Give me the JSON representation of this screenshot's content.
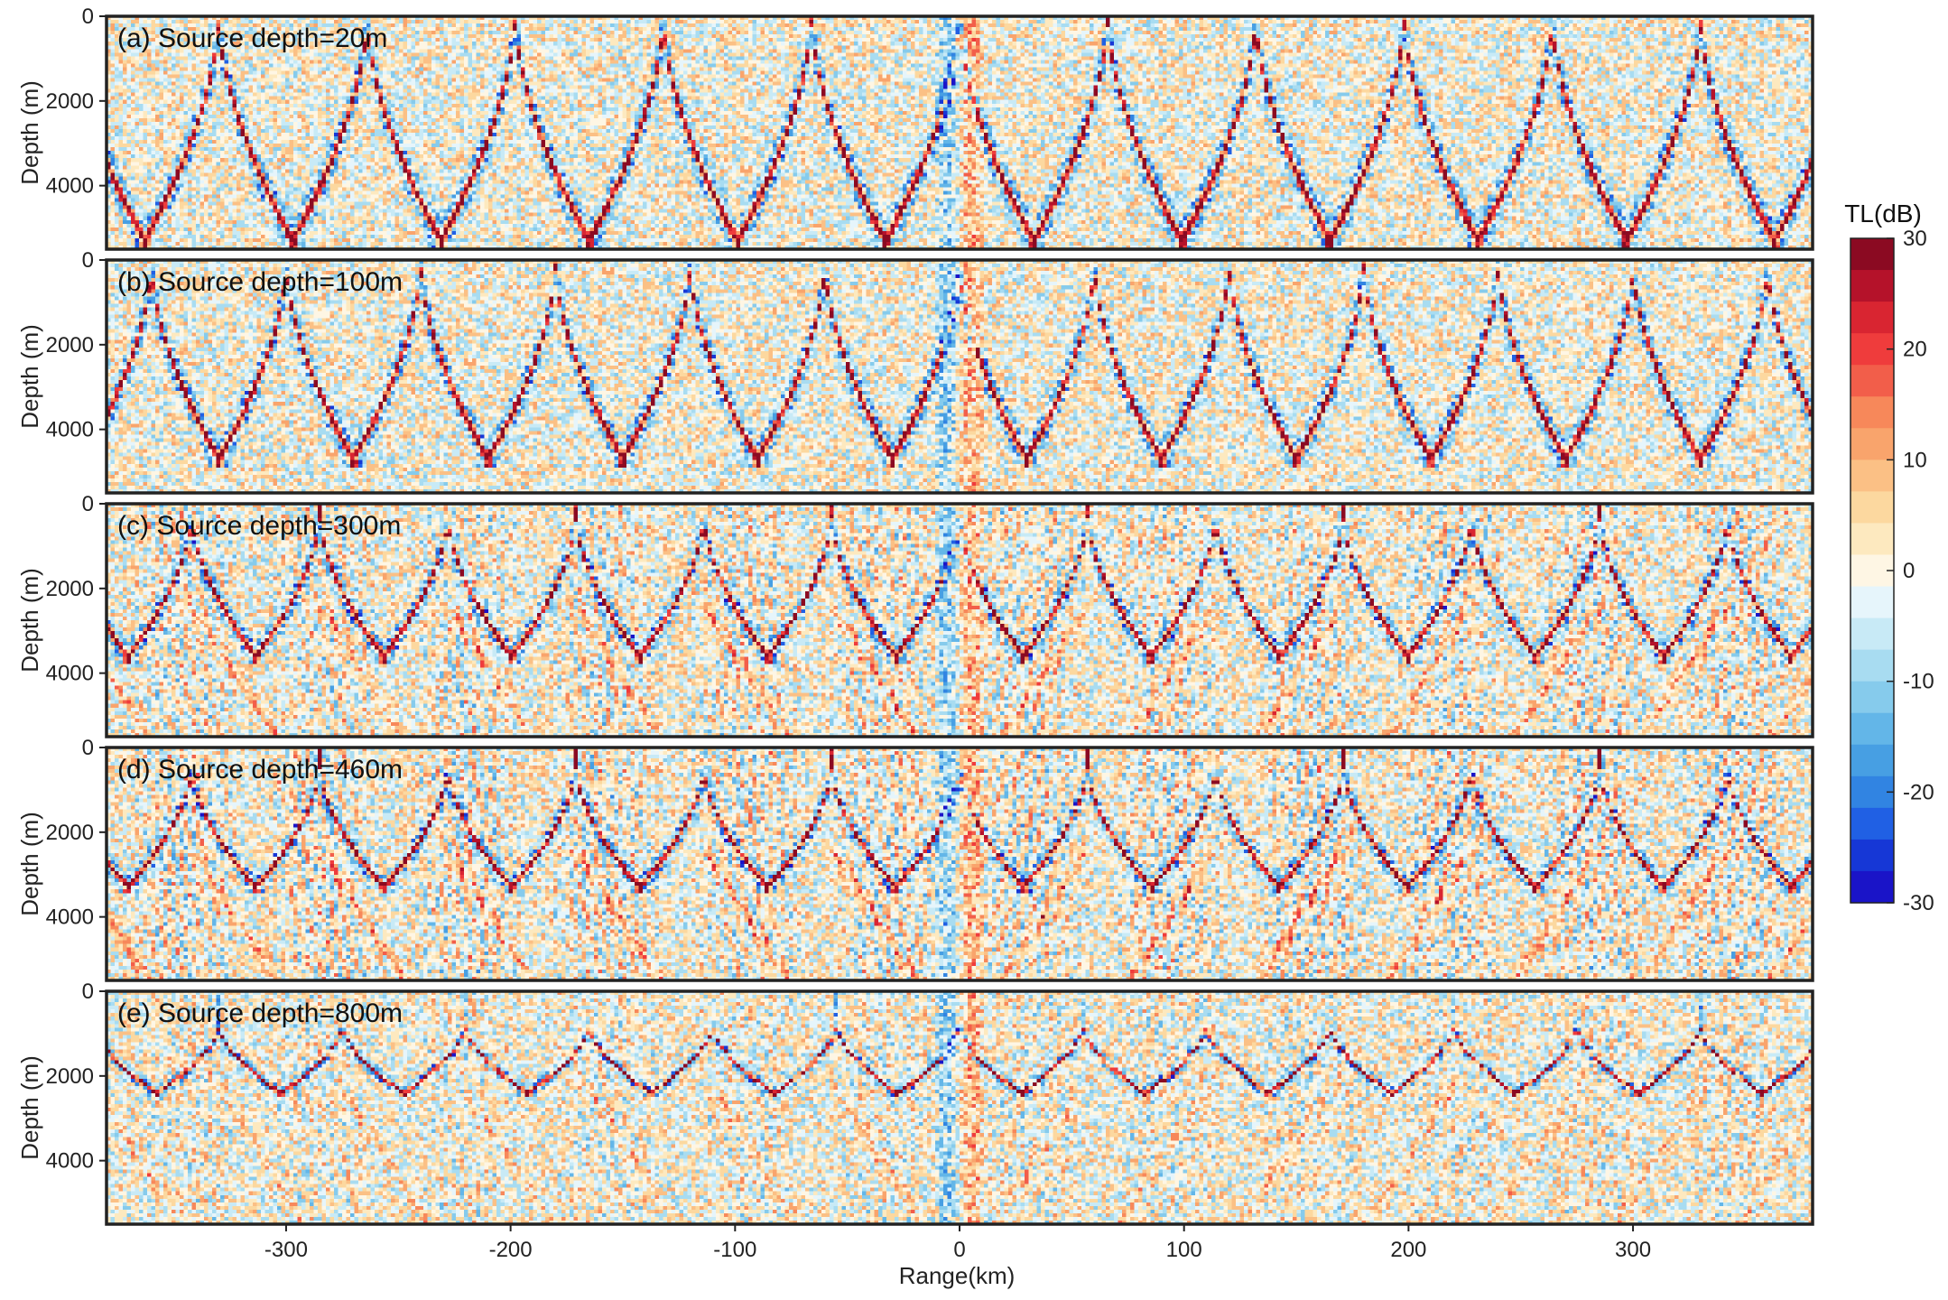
{
  "chart_data": {
    "type": "heatmap",
    "colorbar": {
      "title": "TL(dB)",
      "range": [
        -30,
        30
      ],
      "tick_labels": [
        "30",
        "20",
        "10",
        "0",
        "-10",
        "-20",
        "-30"
      ],
      "tick_values": [
        30,
        20,
        10,
        0,
        -10,
        -20,
        -30
      ],
      "colors_top_to_bottom": [
        "#8b0a22",
        "#b5122a",
        "#d92531",
        "#ef3c3c",
        "#f25e4a",
        "#f7885a",
        "#f9a46c",
        "#fbc085",
        "#fcd89f",
        "#fde9bf",
        "#fef6e4",
        "#e6f5fb",
        "#c8eaf6",
        "#a8dcf1",
        "#86cbec",
        "#63b6e8",
        "#479fe3",
        "#3184e2",
        "#2060e4",
        "#1637d6",
        "#1a14c8"
      ]
    },
    "x_axis": {
      "label": "Range(km)",
      "range": [
        -380,
        380
      ],
      "tick_values": [
        -300,
        -200,
        -100,
        0,
        100,
        200,
        300
      ],
      "tick_labels": [
        "-300",
        "-200",
        "-100",
        "0",
        "100",
        "200",
        "300"
      ]
    },
    "y_axis": {
      "label": "Depth (m)",
      "range": [
        0,
        5500
      ],
      "reversed": true,
      "tick_values": [
        0,
        2000,
        4000
      ],
      "tick_labels": [
        "0",
        "2000",
        "4000"
      ]
    },
    "panels": [
      {
        "label": "(a) Source depth=20m",
        "source_depth_m": 20,
        "convergence_zone_spacing_km": 66,
        "lower_turning_depth_m": 5300,
        "fan_strength": 0.0
      },
      {
        "label": "(b) Source depth=100m",
        "source_depth_m": 100,
        "convergence_zone_spacing_km": 60,
        "lower_turning_depth_m": 4700,
        "fan_strength": 0.0
      },
      {
        "label": "(c)  Source depth=300m",
        "source_depth_m": 300,
        "convergence_zone_spacing_km": 57,
        "lower_turning_depth_m": 3600,
        "fan_strength": 0.6
      },
      {
        "label": "(d)  Source depth=460m",
        "source_depth_m": 460,
        "convergence_zone_spacing_km": 57,
        "lower_turning_depth_m": 3300,
        "fan_strength": 0.7
      },
      {
        "label": "(e)  Source depth=800m",
        "source_depth_m": 800,
        "convergence_zone_spacing_km": 55,
        "lower_turning_depth_m": 2400,
        "fan_strength": 0.4
      }
    ]
  }
}
